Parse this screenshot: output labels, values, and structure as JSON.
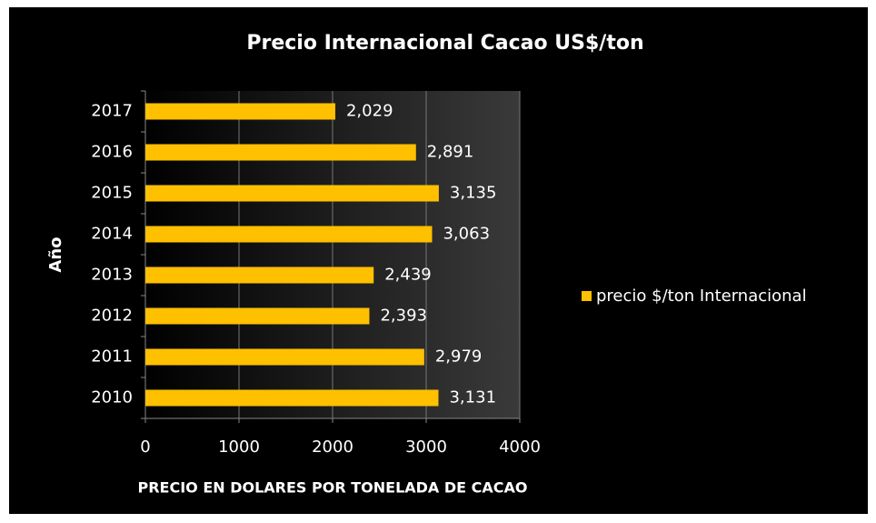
{
  "chart_data": {
    "type": "bar",
    "orientation": "horizontal",
    "title": "Precio Internacional  Cacao US$/ton",
    "x_label": "PRECIO EN DOLARES POR TONELADA DE CACAO",
    "y_label": "Año",
    "categories": [
      "2017",
      "2016",
      "2015",
      "2014",
      "2013",
      "2012",
      "2011",
      "2010"
    ],
    "series": [
      {
        "name": "precio $/ton Internacional",
        "color": "#ffc000",
        "values": [
          2029,
          2891,
          3135,
          3063,
          2439,
          2393,
          2979,
          3131
        ],
        "value_labels": [
          "2,029",
          "2,891",
          "3,135",
          "3,063",
          "2,439",
          "2,393",
          "2,979",
          "3,131"
        ]
      }
    ],
    "xlim": [
      0,
      4000
    ],
    "xticks": [
      0,
      1000,
      2000,
      3000,
      4000
    ],
    "grid": true,
    "legend": "right"
  }
}
